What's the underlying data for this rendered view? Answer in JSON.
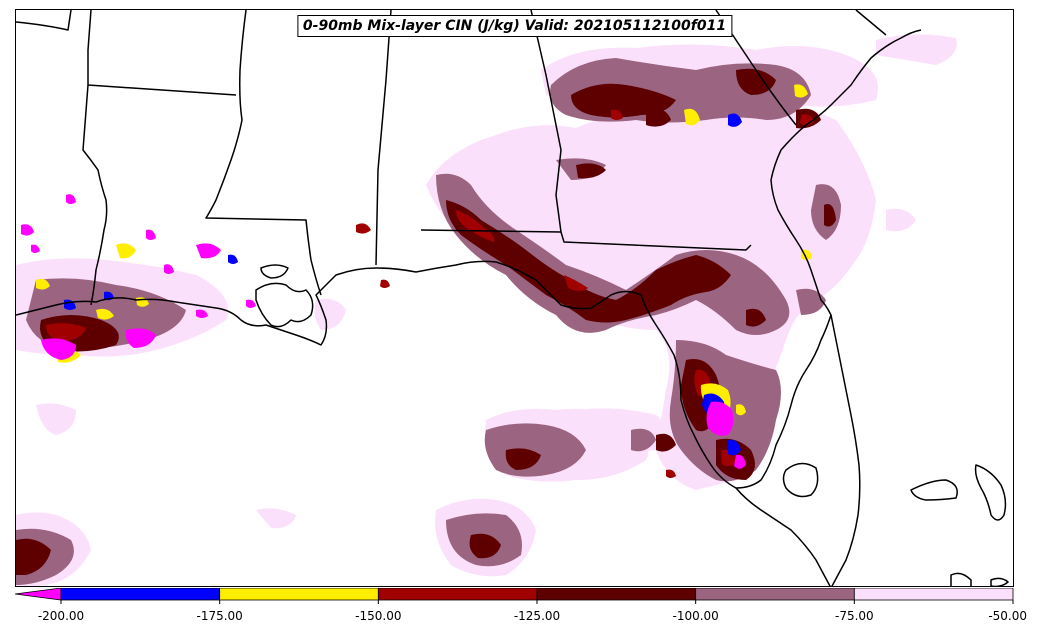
{
  "map": {
    "title": "0-90mb Mix-layer CIN (J/kg) Valid: 202105112100f011"
  },
  "legend": {
    "colors": [
      "#ff00ff",
      "#0000ff",
      "#ffee00",
      "#a00000",
      "#5e0000",
      "#9b6480",
      "#fbe0fb"
    ],
    "ticks": [
      "-200.00",
      "-175.00",
      "-150.00",
      "-125.00",
      "-100.00",
      "-75.00",
      "-50.00"
    ],
    "levels": [
      {
        "range": "< -200",
        "color": "#ff00ff"
      },
      {
        "range": "-200 to -175",
        "color": "#0000ff"
      },
      {
        "range": "-175 to -150",
        "color": "#ffee00"
      },
      {
        "range": "-150 to -125",
        "color": "#a00000"
      },
      {
        "range": "-125 to -100",
        "color": "#5e0000"
      },
      {
        "range": "-100 to -75",
        "color": "#9b6480"
      },
      {
        "range": "-75 to -50",
        "color": "#fbe0fb"
      }
    ]
  }
}
